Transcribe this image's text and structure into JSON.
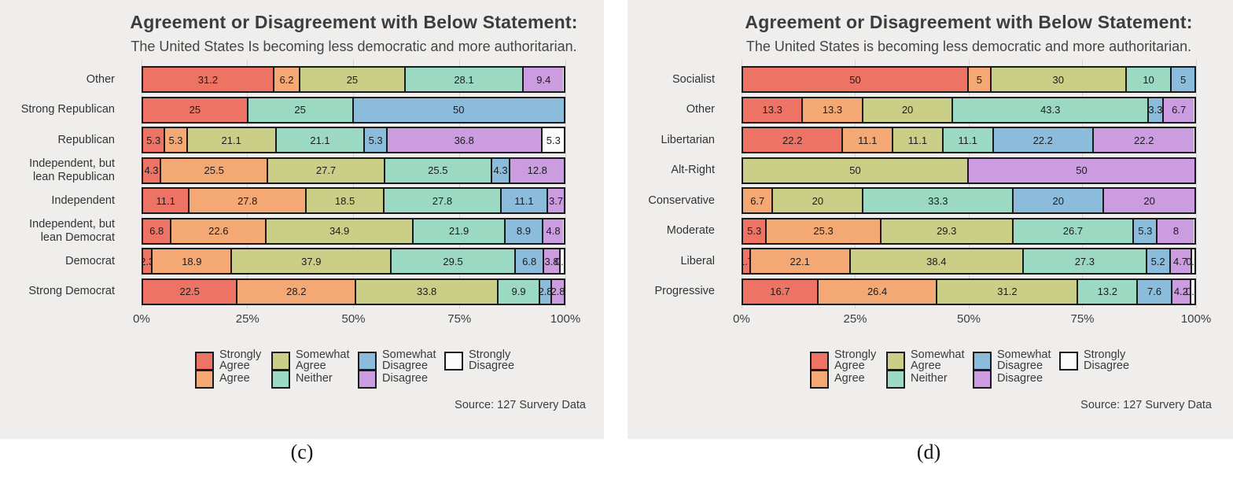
{
  "captions": [
    "(c)",
    "(d)"
  ],
  "colors": {
    "strongly_agree": "#ED7365",
    "agree": "#F4A873",
    "somewhat_agree": "#CBCE87",
    "neither": "#9BD9C3",
    "somewhat_disagree": "#8CBCDC",
    "disagree": "#CB9CE0",
    "strongly_disagree": "#FCFCFA",
    "segment_border": "#1a1a1a",
    "panel_background": "#efeeec",
    "gridline": "#d6d3d0"
  },
  "legend": {
    "columns": [
      {
        "items": [
          {
            "key": "strongly_agree",
            "label": "Strongly\nAgree"
          },
          {
            "key": "agree",
            "label": "Agree"
          }
        ]
      },
      {
        "items": [
          {
            "key": "somewhat_agree",
            "label": "Somewhat\nAgree"
          },
          {
            "key": "neither",
            "label": "Neither"
          }
        ]
      },
      {
        "items": [
          {
            "key": "somewhat_disagree",
            "label": "Somewhat\nDisagree"
          },
          {
            "key": "disagree",
            "label": "Disagree"
          }
        ]
      },
      {
        "items": [
          {
            "key": "strongly_disagree",
            "label": "Strongly\nDisagree"
          }
        ]
      }
    ]
  },
  "chart_data": [
    {
      "type": "bar",
      "orientation": "horizontal-stacked",
      "title": "Agreement or Disagreement with Below Statement:",
      "subtitle": "The United States Is becoming less democratic and more authoritarian.",
      "source": "Source: 127 Survery Data",
      "xlim": [
        0,
        100
      ],
      "x_ticks": [
        "0%",
        "25%",
        "50%",
        "75%",
        "100%"
      ],
      "legend_position": "bottom",
      "grid": true,
      "categories": [
        "Other",
        "Strong Republican",
        "Republican",
        "Independent, but\nlean Republican",
        "Independent",
        "Independent, but\nlean Democrat",
        "Democrat",
        "Strong Democrat"
      ],
      "series": [
        {
          "key": "strongly_agree",
          "name": "Strongly Agree",
          "values": [
            31.2,
            25,
            5.3,
            4.3,
            11.1,
            6.8,
            2.3,
            22.5
          ]
        },
        {
          "key": "agree",
          "name": "Agree",
          "values": [
            6.2,
            0,
            5.3,
            25.5,
            27.8,
            22.6,
            18.9,
            28.2
          ]
        },
        {
          "key": "somewhat_agree",
          "name": "Somewhat Agree",
          "values": [
            25,
            0,
            21.1,
            27.7,
            18.5,
            34.9,
            37.9,
            33.8
          ]
        },
        {
          "key": "neither",
          "name": "Neither",
          "values": [
            28.1,
            25,
            21.1,
            25.5,
            27.8,
            21.9,
            29.5,
            9.9
          ]
        },
        {
          "key": "somewhat_disagree",
          "name": "Somewhat Disagree",
          "values": [
            0,
            50,
            5.3,
            4.3,
            11.1,
            8.9,
            6.8,
            2.8
          ]
        },
        {
          "key": "disagree",
          "name": "Disagree",
          "values": [
            9.4,
            0,
            36.8,
            12.8,
            3.7,
            4.8,
            3.8,
            2.8
          ]
        },
        {
          "key": "strongly_disagree",
          "name": "Strongly Disagree",
          "values": [
            0,
            0,
            5.3,
            0,
            0,
            0,
            0.8,
            0
          ]
        }
      ]
    },
    {
      "type": "bar",
      "orientation": "horizontal-stacked",
      "title": "Agreement or Disagreement with Below Statement:",
      "subtitle": "The United States is becoming less democratic and more authoritarian.",
      "source": "Source: 127 Survery Data",
      "xlim": [
        0,
        100
      ],
      "x_ticks": [
        "0%",
        "25%",
        "50%",
        "75%",
        "100%"
      ],
      "legend_position": "bottom",
      "grid": true,
      "categories": [
        "Socialist",
        "Other",
        "Libertarian",
        "Alt-Right",
        "Conservative",
        "Moderate",
        "Liberal",
        "Progressive"
      ],
      "series": [
        {
          "key": "strongly_agree",
          "name": "Strongly Agree",
          "values": [
            50,
            13.3,
            22.2,
            0,
            0,
            5.3,
            1.7,
            16.7
          ]
        },
        {
          "key": "agree",
          "name": "Agree",
          "values": [
            5,
            13.3,
            11.1,
            0,
            6.7,
            25.3,
            22.1,
            26.4
          ]
        },
        {
          "key": "somewhat_agree",
          "name": "Somewhat Agree",
          "values": [
            30,
            20,
            11.1,
            50,
            20,
            29.3,
            38.4,
            31.2
          ]
        },
        {
          "key": "neither",
          "name": "Neither",
          "values": [
            10,
            43.3,
            11.1,
            0,
            33.3,
            26.7,
            27.3,
            13.2
          ]
        },
        {
          "key": "somewhat_disagree",
          "name": "Somewhat Disagree",
          "values": [
            5,
            3.3,
            22.2,
            0,
            20,
            5.3,
            5.2,
            7.6
          ]
        },
        {
          "key": "disagree",
          "name": "Disagree",
          "values": [
            0,
            6.7,
            22.2,
            50,
            20,
            8,
            4.7,
            4.2
          ]
        },
        {
          "key": "strongly_disagree",
          "name": "Strongly Disagree",
          "values": [
            0,
            0,
            0,
            0,
            0,
            0,
            0.6,
            0.7
          ]
        }
      ]
    }
  ]
}
